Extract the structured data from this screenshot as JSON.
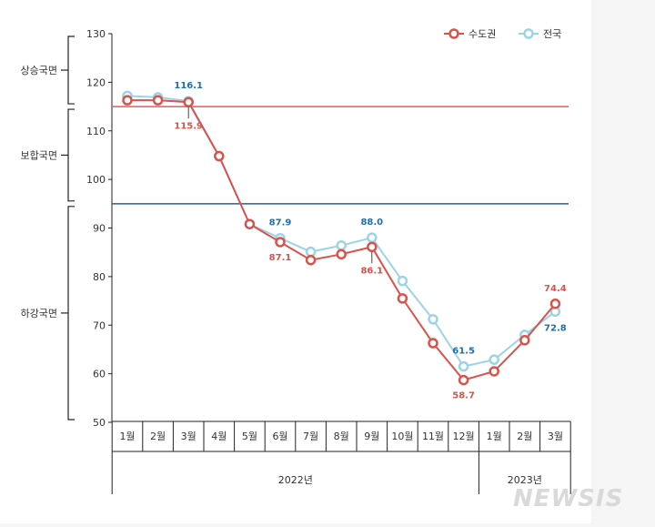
{
  "chart_data": {
    "type": "line",
    "title": "",
    "xlabel": "",
    "ylabel": "",
    "ylim": [
      50,
      130
    ],
    "yticks": [
      50,
      60,
      70,
      80,
      90,
      100,
      110,
      120,
      130
    ],
    "categories": [
      "1월",
      "2월",
      "3월",
      "4월",
      "5월",
      "6월",
      "7월",
      "8월",
      "9월",
      "10월",
      "11월",
      "12월",
      "1월",
      "2월",
      "3월"
    ],
    "year_groups": [
      {
        "label": "2022년",
        "start": 0,
        "end": 11
      },
      {
        "label": "2023년",
        "start": 12,
        "end": 14
      }
    ],
    "series": [
      {
        "name": "수도권",
        "color": "#d9534a",
        "values": [
          116.3,
          116.3,
          115.9,
          104.8,
          90.8,
          87.1,
          83.4,
          84.6,
          86.1,
          75.5,
          66.3,
          58.7,
          60.5,
          66.9,
          74.4
        ]
      },
      {
        "name": "전국",
        "color": "#9dd3e6",
        "values": [
          117.2,
          116.9,
          116.1,
          104.8,
          90.8,
          87.9,
          85.1,
          86.4,
          88.0,
          79.1,
          71.2,
          61.5,
          62.9,
          68.0,
          72.8
        ]
      }
    ],
    "reference_lines": [
      {
        "value": 115,
        "color": "#e05a60"
      },
      {
        "value": 95,
        "color": "#2f5c9a"
      }
    ],
    "phases": [
      {
        "label": "상승국면",
        "from": 115,
        "to": 130
      },
      {
        "label": "보합국면",
        "from": 95,
        "to": 115
      },
      {
        "label": "하강국면",
        "from": 50,
        "to": 95
      }
    ],
    "data_labels": [
      {
        "series": 1,
        "index": 2,
        "text": "116.1",
        "color": "#1f6fae"
      },
      {
        "series": 0,
        "index": 2,
        "text": "115.9",
        "color": "#d9534a"
      },
      {
        "series": 1,
        "index": 5,
        "text": "87.9",
        "color": "#1f6fae"
      },
      {
        "series": 0,
        "index": 5,
        "text": "87.1",
        "color": "#d9534a"
      },
      {
        "series": 1,
        "index": 8,
        "text": "88.0",
        "color": "#1f6fae"
      },
      {
        "series": 0,
        "index": 8,
        "text": "86.1",
        "color": "#d9534a"
      },
      {
        "series": 1,
        "index": 11,
        "text": "61.5",
        "color": "#1f6fae"
      },
      {
        "series": 0,
        "index": 11,
        "text": "58.7",
        "color": "#d9534a"
      },
      {
        "series": 0,
        "index": 14,
        "text": "74.4",
        "color": "#d9534a"
      },
      {
        "series": 1,
        "index": 14,
        "text": "72.8",
        "color": "#1f6fae"
      }
    ],
    "legend_position": "top-right"
  },
  "watermark": "NEWSIS"
}
